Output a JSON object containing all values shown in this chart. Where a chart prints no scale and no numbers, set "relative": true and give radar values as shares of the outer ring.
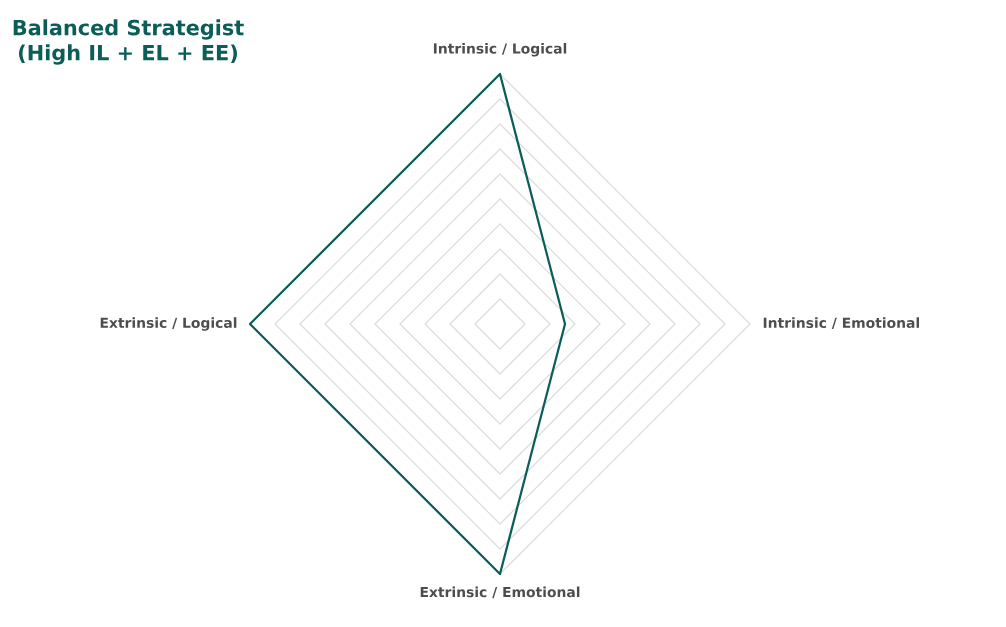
{
  "chart_data": {
    "type": "radar",
    "title": "Balanced Strategist\n(High IL + EL + EE)",
    "relative": true,
    "grid": true,
    "categories": [
      "Intrinsic / Logical",
      "Intrinsic / Emotional",
      "Extrinsic / Emotional",
      "Extrinsic / Logical"
    ],
    "series": [
      {
        "color": "#0b5e57",
        "values": [
          1.0,
          0.26,
          1.0,
          1.0
        ]
      }
    ]
  }
}
